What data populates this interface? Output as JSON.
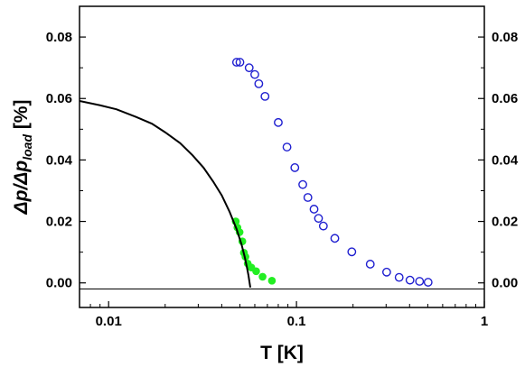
{
  "chart_data": {
    "type": "scatter",
    "xlabel": "T [K]",
    "ylabel": {
      "main": "Δp/Δp",
      "sub": "load",
      "unit": " [%]"
    },
    "x_scale": "log",
    "xlim": [
      0.007,
      1
    ],
    "ylim": [
      -0.008,
      0.09
    ],
    "x_ticks": [
      {
        "value": 0.01,
        "label": "0.01"
      },
      {
        "value": 0.1,
        "label": "0.1"
      },
      {
        "value": 1,
        "label": "1"
      }
    ],
    "y_ticks": [
      {
        "value": 0.0,
        "label": "0.00"
      },
      {
        "value": 0.02,
        "label": "0.02"
      },
      {
        "value": 0.04,
        "label": "0.04"
      },
      {
        "value": 0.06,
        "label": "0.06"
      },
      {
        "value": 0.08,
        "label": "0.08"
      }
    ],
    "right_axis_ticks": true,
    "grid": false,
    "baseline": {
      "y": 0.0,
      "color": "#000000"
    },
    "series": [
      {
        "kind": "scatter-open-circle",
        "color": "#1f1fd0",
        "points": [
          {
            "x": 0.048,
            "y": 0.0718
          },
          {
            "x": 0.05,
            "y": 0.0718
          },
          {
            "x": 0.056,
            "y": 0.07
          },
          {
            "x": 0.06,
            "y": 0.0678
          },
          {
            "x": 0.063,
            "y": 0.0648
          },
          {
            "x": 0.068,
            "y": 0.0607
          },
          {
            "x": 0.08,
            "y": 0.0522
          },
          {
            "x": 0.089,
            "y": 0.0442
          },
          {
            "x": 0.098,
            "y": 0.0375
          },
          {
            "x": 0.108,
            "y": 0.032
          },
          {
            "x": 0.115,
            "y": 0.0278
          },
          {
            "x": 0.124,
            "y": 0.024
          },
          {
            "x": 0.131,
            "y": 0.021
          },
          {
            "x": 0.139,
            "y": 0.0185
          },
          {
            "x": 0.16,
            "y": 0.0145
          },
          {
            "x": 0.197,
            "y": 0.0101
          },
          {
            "x": 0.247,
            "y": 0.0061
          },
          {
            "x": 0.302,
            "y": 0.0035
          },
          {
            "x": 0.352,
            "y": 0.0018
          },
          {
            "x": 0.402,
            "y": 0.0009
          },
          {
            "x": 0.452,
            "y": 0.0005
          },
          {
            "x": 0.502,
            "y": 0.0002
          }
        ]
      },
      {
        "kind": "scatter-filled-circle",
        "color": "#22ee22",
        "points": [
          {
            "x": 0.0475,
            "y": 0.02
          },
          {
            "x": 0.0485,
            "y": 0.018
          },
          {
            "x": 0.0498,
            "y": 0.0165
          },
          {
            "x": 0.0515,
            "y": 0.0135
          },
          {
            "x": 0.0525,
            "y": 0.0098
          },
          {
            "x": 0.0535,
            "y": 0.0085
          },
          {
            "x": 0.055,
            "y": 0.0063
          },
          {
            "x": 0.0575,
            "y": 0.005
          },
          {
            "x": 0.061,
            "y": 0.0038
          },
          {
            "x": 0.066,
            "y": 0.002
          },
          {
            "x": 0.074,
            "y": 0.0007
          }
        ]
      },
      {
        "kind": "line",
        "color": "#000000",
        "points": [
          {
            "x": 0.007,
            "y": 0.0592
          },
          {
            "x": 0.009,
            "y": 0.0578
          },
          {
            "x": 0.011,
            "y": 0.0565
          },
          {
            "x": 0.014,
            "y": 0.054
          },
          {
            "x": 0.017,
            "y": 0.0518
          },
          {
            "x": 0.02,
            "y": 0.049
          },
          {
            "x": 0.024,
            "y": 0.0455
          },
          {
            "x": 0.028,
            "y": 0.0415
          },
          {
            "x": 0.032,
            "y": 0.0375
          },
          {
            "x": 0.036,
            "y": 0.033
          },
          {
            "x": 0.04,
            "y": 0.0285
          },
          {
            "x": 0.044,
            "y": 0.0232
          },
          {
            "x": 0.048,
            "y": 0.0175
          },
          {
            "x": 0.051,
            "y": 0.0125
          },
          {
            "x": 0.053,
            "y": 0.0085
          },
          {
            "x": 0.0545,
            "y": 0.005
          },
          {
            "x": 0.0555,
            "y": 0.0025
          },
          {
            "x": 0.0563,
            "y": 0.0
          },
          {
            "x": 0.0568,
            "y": -0.0015
          }
        ]
      }
    ]
  }
}
